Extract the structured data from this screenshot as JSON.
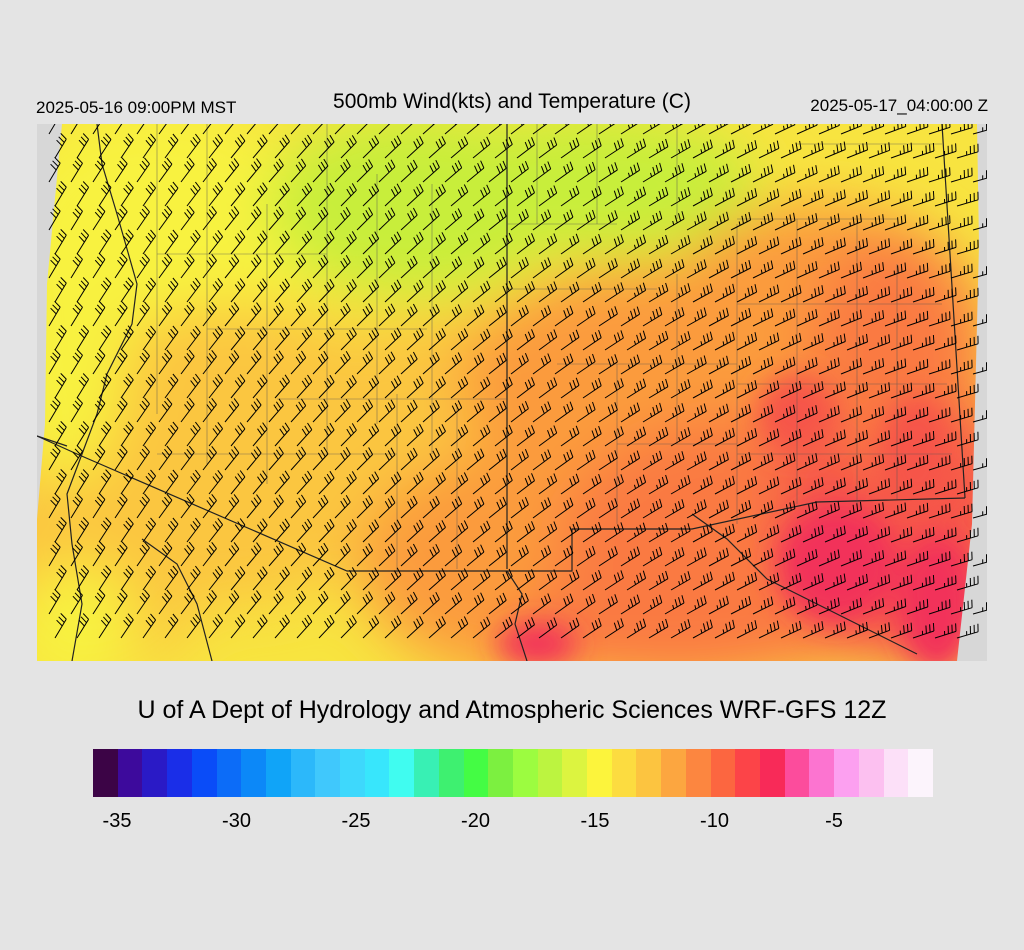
{
  "header": {
    "local_time": "2025-05-16 09:00PM MST",
    "title": "500mb Wind(kts) and Temperature (C)",
    "valid_time": "2025-05-17_04:00:00 Z"
  },
  "map": {
    "field": "500mb temperature",
    "wind_barbs": "wind barbs in knots",
    "colors": {
      "cold": "#c8ee3a",
      "cool": "#f8f240",
      "mild": "#fbc640",
      "warm": "#fb9b3e",
      "warmer": "#fa7a42",
      "hot": "#f65548",
      "hottest": "#f2305a",
      "background": "#d7d7d7"
    }
  },
  "footer": {
    "credit": "U of A Dept of Hydrology and Atmospheric Sciences WRF-GFS 12Z"
  },
  "colorbar": {
    "colors": [
      "#3c0446",
      "#3d0a9c",
      "#2a1ac6",
      "#1a2ee8",
      "#0a4cf8",
      "#0c6cf8",
      "#0c88f8",
      "#10a4f8",
      "#2cb8fa",
      "#40c8fc",
      "#3ed8fc",
      "#38e6fc",
      "#40fcf0",
      "#38f0b4",
      "#3ef070",
      "#44fc44",
      "#7cf040",
      "#9cfc40",
      "#bcf440",
      "#dcf440",
      "#fcf43c",
      "#fcdc40",
      "#fcc440",
      "#fca640",
      "#fc8640",
      "#fc6640",
      "#fc4448",
      "#f82a58",
      "#fc4c9c",
      "#fc74d0",
      "#fca0f0",
      "#fcc0f0",
      "#fce0f8",
      "#fcf4fc"
    ],
    "ticks": [
      {
        "label": "-35",
        "pos": 0
      },
      {
        "label": "-30",
        "pos": 1
      },
      {
        "label": "-25",
        "pos": 2
      },
      {
        "label": "-20",
        "pos": 3
      },
      {
        "label": "-15",
        "pos": 4
      },
      {
        "label": "-10",
        "pos": 5
      },
      {
        "label": "-5",
        "pos": 6
      }
    ]
  }
}
